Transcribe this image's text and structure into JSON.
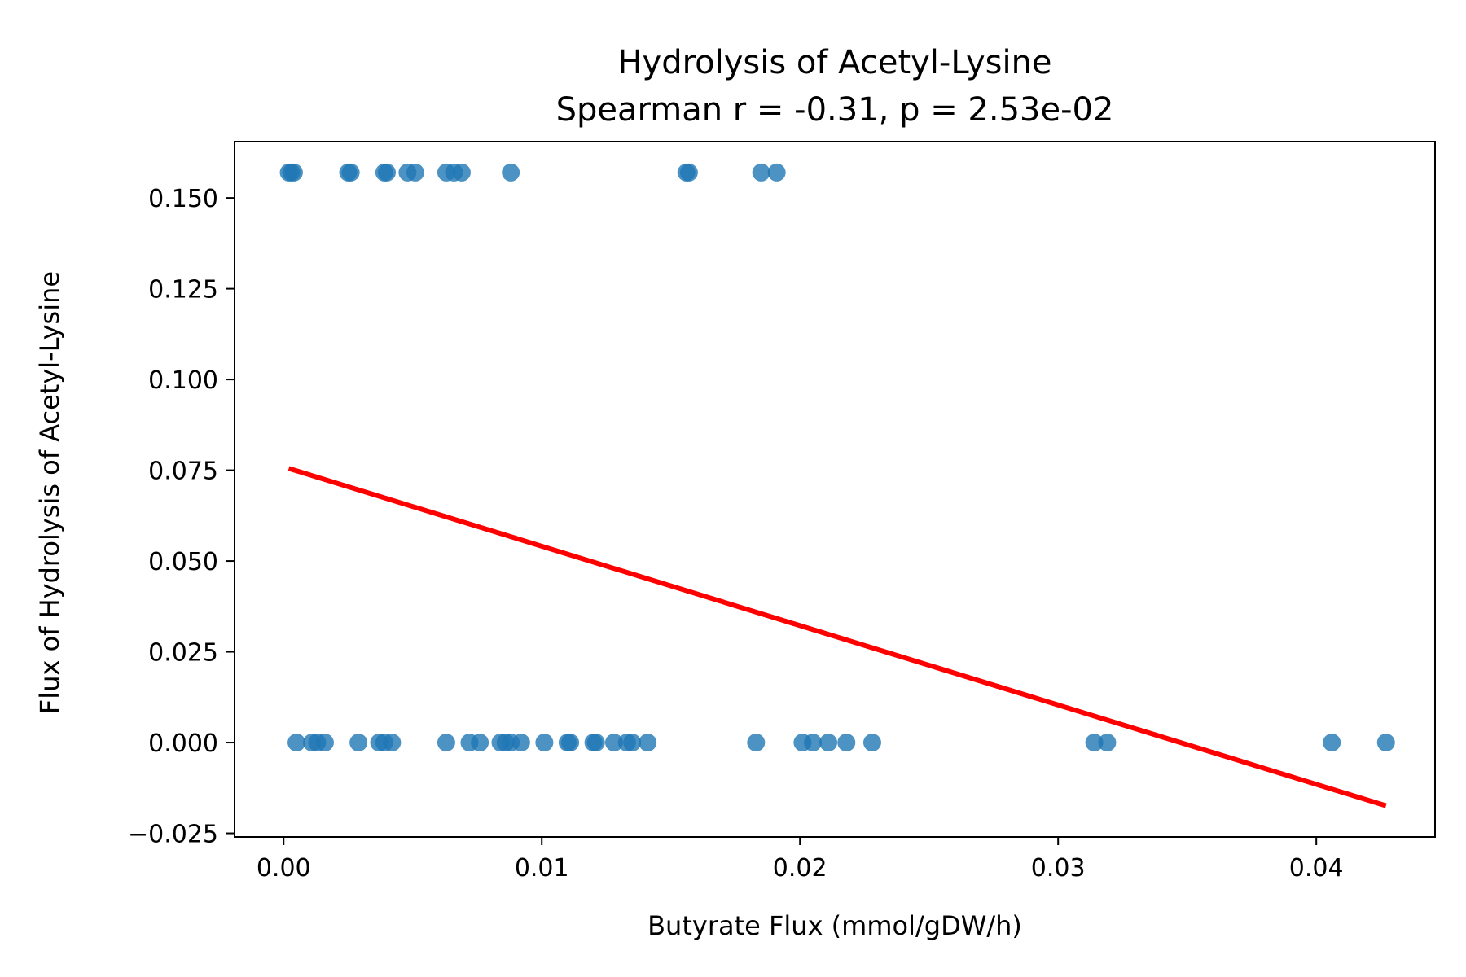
{
  "chart_data": {
    "type": "scatter",
    "title": "Hydrolysis of Acetyl-Lysine",
    "subtitle": "Spearman r = -0.31, p = 2.53e-02",
    "xlabel": "Butyrate Flux (mmol/gDW/h)",
    "ylabel": "Flux of Hydrolysis of Acetyl-Lysine",
    "xlim": [
      -0.0019,
      0.0446
    ],
    "ylim": [
      -0.026,
      0.1655
    ],
    "grid": false,
    "legend": "none",
    "x_ticks": [
      {
        "value": 0.0,
        "label": "0.00"
      },
      {
        "value": 0.01,
        "label": "0.01"
      },
      {
        "value": 0.02,
        "label": "0.02"
      },
      {
        "value": 0.03,
        "label": "0.03"
      },
      {
        "value": 0.04,
        "label": "0.04"
      }
    ],
    "y_ticks": [
      {
        "value": -0.025,
        "label": "−0.025"
      },
      {
        "value": 0.0,
        "label": "0.000"
      },
      {
        "value": 0.025,
        "label": "0.025"
      },
      {
        "value": 0.05,
        "label": "0.050"
      },
      {
        "value": 0.075,
        "label": "0.075"
      },
      {
        "value": 0.1,
        "label": "0.100"
      },
      {
        "value": 0.125,
        "label": "0.125"
      },
      {
        "value": 0.15,
        "label": "0.150"
      }
    ],
    "series": [
      {
        "color": "#1f77b4",
        "points": [
          {
            "x": 0.0002,
            "y": 0.157
          },
          {
            "x": 0.0003,
            "y": 0.157
          },
          {
            "x": 0.0004,
            "y": 0.157
          },
          {
            "x": 0.0025,
            "y": 0.157
          },
          {
            "x": 0.0026,
            "y": 0.157
          },
          {
            "x": 0.0039,
            "y": 0.157
          },
          {
            "x": 0.004,
            "y": 0.157
          },
          {
            "x": 0.0048,
            "y": 0.157
          },
          {
            "x": 0.0051,
            "y": 0.157
          },
          {
            "x": 0.0063,
            "y": 0.157
          },
          {
            "x": 0.0066,
            "y": 0.157
          },
          {
            "x": 0.0069,
            "y": 0.157
          },
          {
            "x": 0.0088,
            "y": 0.157
          },
          {
            "x": 0.0156,
            "y": 0.157
          },
          {
            "x": 0.0157,
            "y": 0.157
          },
          {
            "x": 0.0185,
            "y": 0.157
          },
          {
            "x": 0.0191,
            "y": 0.157
          },
          {
            "x": 0.0005,
            "y": 0.0
          },
          {
            "x": 0.0011,
            "y": 0.0
          },
          {
            "x": 0.0013,
            "y": 0.0
          },
          {
            "x": 0.0016,
            "y": 0.0
          },
          {
            "x": 0.0029,
            "y": 0.0
          },
          {
            "x": 0.0037,
            "y": 0.0
          },
          {
            "x": 0.0039,
            "y": 0.0
          },
          {
            "x": 0.0042,
            "y": 0.0
          },
          {
            "x": 0.0063,
            "y": 0.0
          },
          {
            "x": 0.0072,
            "y": 0.0
          },
          {
            "x": 0.0076,
            "y": 0.0
          },
          {
            "x": 0.0084,
            "y": 0.0
          },
          {
            "x": 0.0086,
            "y": 0.0
          },
          {
            "x": 0.0088,
            "y": 0.0
          },
          {
            "x": 0.0092,
            "y": 0.0
          },
          {
            "x": 0.0101,
            "y": 0.0
          },
          {
            "x": 0.011,
            "y": 0.0
          },
          {
            "x": 0.0111,
            "y": 0.0
          },
          {
            "x": 0.012,
            "y": 0.0
          },
          {
            "x": 0.0121,
            "y": 0.0
          },
          {
            "x": 0.0128,
            "y": 0.0
          },
          {
            "x": 0.0133,
            "y": 0.0
          },
          {
            "x": 0.0135,
            "y": 0.0
          },
          {
            "x": 0.0141,
            "y": 0.0
          },
          {
            "x": 0.0183,
            "y": 0.0
          },
          {
            "x": 0.0201,
            "y": 0.0
          },
          {
            "x": 0.0205,
            "y": 0.0
          },
          {
            "x": 0.0211,
            "y": 0.0
          },
          {
            "x": 0.0218,
            "y": 0.0
          },
          {
            "x": 0.0228,
            "y": 0.0
          },
          {
            "x": 0.0314,
            "y": 0.0
          },
          {
            "x": 0.0319,
            "y": 0.0
          },
          {
            "x": 0.0406,
            "y": 0.0
          },
          {
            "x": 0.0427,
            "y": 0.0
          }
        ]
      }
    ],
    "fit_line": {
      "color": "#ff0000",
      "x": [
        0.0002,
        0.0427
      ],
      "y": [
        0.0755,
        -0.0174
      ]
    }
  }
}
